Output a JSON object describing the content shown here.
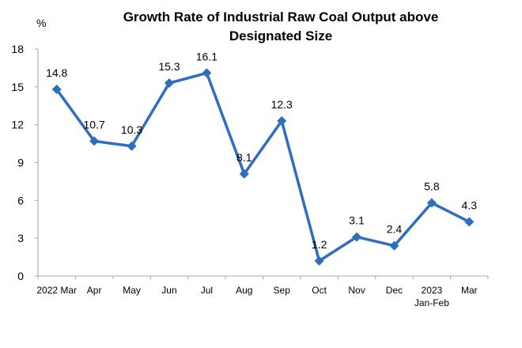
{
  "chart_data": {
    "type": "line",
    "title": "Growth Rate of Industrial Raw Coal Output above Designated Size",
    "title_lines": [
      "Growth Rate of Industrial Raw Coal Output above",
      "Designated Size"
    ],
    "unit_label": "%",
    "xlabel": "",
    "ylabel": "%",
    "categories": [
      [
        "2022 Mar"
      ],
      [
        "Apr"
      ],
      [
        "May"
      ],
      [
        "Jun"
      ],
      [
        "Jul"
      ],
      [
        "Aug"
      ],
      [
        "Sep"
      ],
      [
        "Oct"
      ],
      [
        "Nov"
      ],
      [
        "Dec"
      ],
      [
        "2023",
        "Jan-Feb"
      ],
      [
        "Mar"
      ]
    ],
    "values": [
      14.8,
      10.7,
      10.3,
      15.3,
      16.1,
      8.1,
      12.3,
      1.2,
      3.1,
      2.4,
      5.8,
      4.3
    ],
    "data_labels": [
      "14.8",
      "10.7",
      "10.3",
      "15.3",
      "16.1",
      "8.1",
      "12.3",
      "1.2",
      "3.1",
      "2.4",
      "5.8",
      "4.3"
    ],
    "ylim": [
      0,
      18
    ],
    "yticks": [
      0,
      3,
      6,
      9,
      12,
      15,
      18
    ],
    "grid": false,
    "legend": "none",
    "series_color": "#2E6DBF",
    "axis_color": "#A6A6A6"
  }
}
